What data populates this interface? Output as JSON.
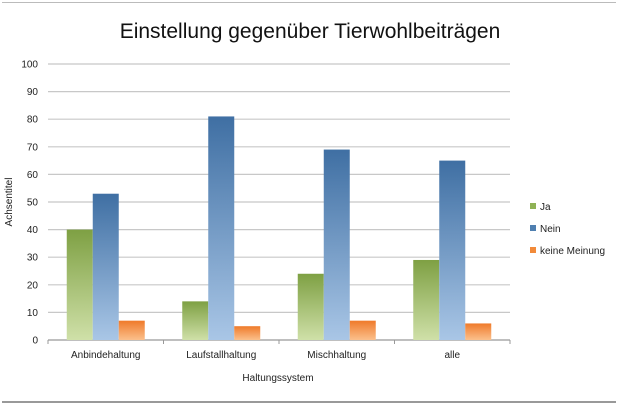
{
  "chart_data": {
    "type": "bar",
    "title": "Einstellung gegenüber Tierwohlbeiträgen",
    "xlabel": "Haltungssystem",
    "ylabel": "Achsentitel",
    "ylim": [
      0,
      100
    ],
    "yticks": [
      0,
      10,
      20,
      30,
      40,
      50,
      60,
      70,
      80,
      90,
      100
    ],
    "grid": true,
    "legend_position": "right",
    "categories": [
      "Anbindehaltung",
      "Laufstallhaltung",
      "Mischhaltung",
      "alle"
    ],
    "series": [
      {
        "name": "Ja",
        "values": [
          40,
          14,
          24,
          29
        ],
        "color": "#8fb255"
      },
      {
        "name": "Nein",
        "values": [
          53,
          81,
          69,
          65
        ],
        "color": "#4f7fb0"
      },
      {
        "name": "keine Meinung",
        "values": [
          7,
          5,
          7,
          6
        ],
        "color": "#f28a3a"
      }
    ]
  }
}
